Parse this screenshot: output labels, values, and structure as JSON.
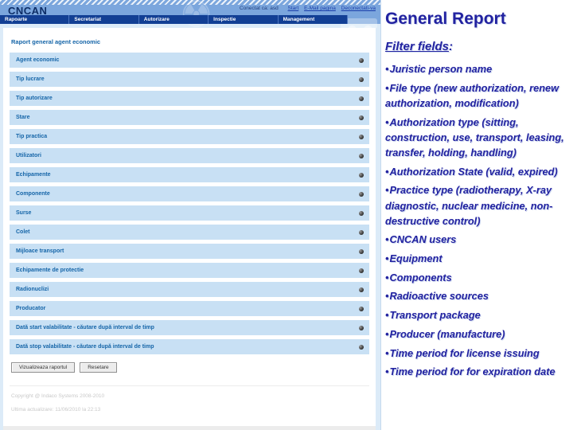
{
  "colors": {
    "header_blue": "#7ba6dd",
    "nav_blue": "#123f94",
    "row_blue": "#c8e0f4",
    "row_text_blue": "#1565a8",
    "slide_text_navy": "#2222a0"
  },
  "app": {
    "logo": "CNCAN",
    "header": {
      "status": "Conectat ca: asd",
      "links": [
        {
          "label": "Start"
        },
        {
          "label": "E-Mail pagina"
        },
        {
          "label": "Deconectati-va"
        }
      ]
    },
    "nav": [
      "Rapoarte",
      "Secretariat",
      "Autorizare",
      "Inspectie",
      "Management"
    ],
    "page_title": "Raport general agent economic",
    "filter_rows": [
      "Agent economic",
      "Tip lucrare",
      "Tip autorizare",
      "Stare",
      "Tip practica",
      "Utilizatori",
      "Echipamente",
      "Componente",
      "Surse",
      "Colet",
      "Mijloace transport",
      "Echipamente de protectie",
      "Radionuclizi",
      "Producator",
      "Dată start valabilitate - căutare după interval de timp",
      "Dată stop valabilitate - căutare după interval de timp"
    ],
    "buttons": {
      "view_report": "Vizualizeaza raportul",
      "reset": "Resetare"
    },
    "footer": {
      "copyright": "Copyright @ Indaco Systems 2008-2010",
      "updated": "Ultima actualizare: 11/06/2010 la 22:13"
    },
    "icons": {
      "trefoil": "radiation-trefoil-watermark",
      "truck": "transport-truck-watermark",
      "row_toggle": "expand-toggle"
    }
  },
  "slide": {
    "title": "General Report",
    "subtitle": "Filter fields",
    "subtitle_suffix": ":",
    "bullets": [
      "Juristic person name",
      "File type (new authorization, renew authorization, modification)",
      "Authorization type (sitting, construction, use, transport, leasing, transfer, holding, handling)",
      "Authorization State (valid, expired)",
      "Practice type (radiotherapy, X-ray diagnostic, nuclear medicine, non-destructive control)",
      "CNCAN users",
      "Equipment",
      "Components",
      "Radioactive sources",
      "Transport package",
      "Producer (manufacture)",
      "Time period for license issuing",
      "Time period for for expiration date"
    ]
  }
}
